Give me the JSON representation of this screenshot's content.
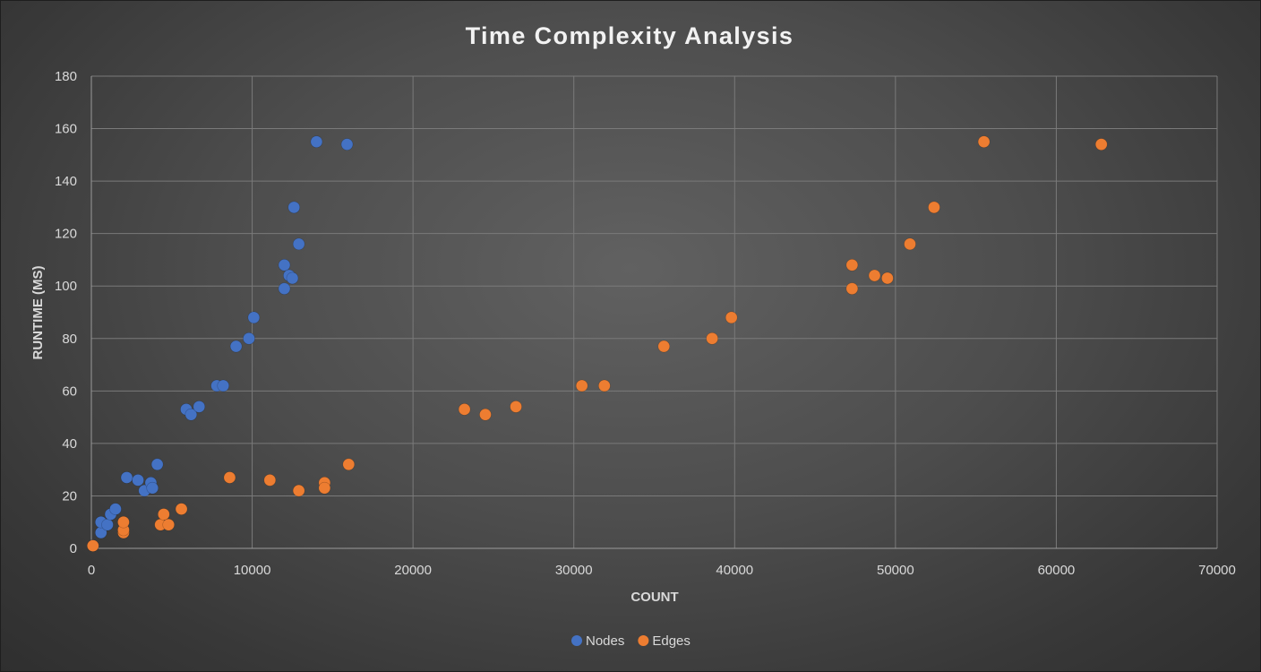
{
  "chart_data": {
    "type": "scatter",
    "title": "Time Complexity Analysis",
    "xlabel": "COUNT",
    "ylabel": "RUNTIME (MS)",
    "xlim": [
      0,
      70000
    ],
    "ylim": [
      0,
      180
    ],
    "x_ticks": [
      0,
      10000,
      20000,
      30000,
      40000,
      50000,
      60000,
      70000
    ],
    "y_ticks": [
      0,
      20,
      40,
      60,
      80,
      100,
      120,
      140,
      160,
      180
    ],
    "grid": true,
    "legend_position": "bottom",
    "series": [
      {
        "name": "Nodes",
        "color": "#4472c4",
        "points": [
          [
            100,
            1
          ],
          [
            600,
            6
          ],
          [
            600,
            10
          ],
          [
            1000,
            9
          ],
          [
            1200,
            13
          ],
          [
            1500,
            15
          ],
          [
            2200,
            27
          ],
          [
            2900,
            26
          ],
          [
            3300,
            22
          ],
          [
            3700,
            25
          ],
          [
            3800,
            23
          ],
          [
            4100,
            32
          ],
          [
            5900,
            53
          ],
          [
            6200,
            51
          ],
          [
            6700,
            54
          ],
          [
            7800,
            62
          ],
          [
            8200,
            62
          ],
          [
            9000,
            77
          ],
          [
            9800,
            80
          ],
          [
            10100,
            88
          ],
          [
            12000,
            108
          ],
          [
            12000,
            99
          ],
          [
            12300,
            104
          ],
          [
            12500,
            103
          ],
          [
            12600,
            130
          ],
          [
            12900,
            116
          ],
          [
            14000,
            155
          ],
          [
            15900,
            154
          ]
        ]
      },
      {
        "name": "Edges",
        "color": "#ed7d31",
        "points": [
          [
            100,
            1
          ],
          [
            2000,
            6
          ],
          [
            2000,
            7
          ],
          [
            2000,
            10
          ],
          [
            4300,
            9
          ],
          [
            4500,
            13
          ],
          [
            4800,
            9
          ],
          [
            5600,
            15
          ],
          [
            8600,
            27
          ],
          [
            11100,
            26
          ],
          [
            12900,
            22
          ],
          [
            14500,
            25
          ],
          [
            14500,
            23
          ],
          [
            16000,
            32
          ],
          [
            23200,
            53
          ],
          [
            24500,
            51
          ],
          [
            26400,
            54
          ],
          [
            30500,
            62
          ],
          [
            31900,
            62
          ],
          [
            35600,
            77
          ],
          [
            38600,
            80
          ],
          [
            39800,
            88
          ],
          [
            47300,
            108
          ],
          [
            47300,
            99
          ],
          [
            48700,
            104
          ],
          [
            49500,
            103
          ],
          [
            52400,
            130
          ],
          [
            50900,
            116
          ],
          [
            55500,
            155
          ],
          [
            62800,
            154
          ]
        ]
      }
    ]
  }
}
